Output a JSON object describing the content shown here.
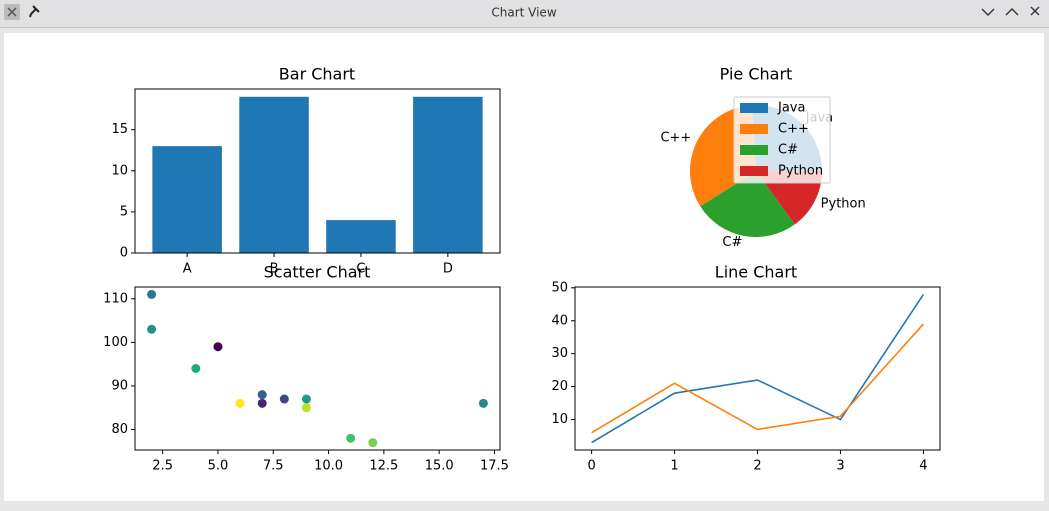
{
  "window": {
    "title": "Chart View"
  },
  "chart_data": [
    {
      "type": "bar",
      "title": "Bar Chart",
      "categories": [
        "A",
        "B",
        "C",
        "D"
      ],
      "values": [
        13,
        19,
        4,
        19
      ],
      "color": "#1f77b4",
      "ylim": [
        0,
        19.95
      ],
      "yticks": [
        0,
        5,
        10,
        15
      ]
    },
    {
      "type": "pie",
      "title": "Pie Chart",
      "categories": [
        "Java",
        "C++",
        "C#",
        "Python"
      ],
      "values": [
        26,
        33,
        26,
        15
      ],
      "colors": [
        "#1f77b4",
        "#ff7f0e",
        "#2ca02c",
        "#d62728"
      ],
      "legend": "upper right"
    },
    {
      "type": "scatter",
      "title": "Scatter Chart",
      "x": [
        5,
        7,
        8,
        7,
        2,
        17,
        2,
        9,
        4,
        11,
        12,
        9,
        6
      ],
      "y": [
        99,
        86,
        87,
        88,
        111,
        86,
        103,
        87,
        94,
        78,
        77,
        85,
        86
      ],
      "colors": [
        "#440154",
        "#482475",
        "#414487",
        "#355f8d",
        "#2a788e",
        "#25858e",
        "#21918c",
        "#1e9b8a",
        "#22a884",
        "#44bf70",
        "#7ad151",
        "#bddf26",
        "#fde725"
      ],
      "xlim": [
        1.25,
        17.75
      ],
      "xticks": [
        2.5,
        {
          "value": 5,
          "label": "5.0"
        },
        7.5,
        {
          "value": 10,
          "label": "10.0"
        },
        12.5,
        {
          "value": 15,
          "label": "15.0"
        },
        17.5
      ],
      "ylim": [
        75.3,
        112.7
      ],
      "yticks": [
        80,
        90,
        100,
        110
      ]
    },
    {
      "type": "line",
      "title": "Line Chart",
      "x": [
        0,
        1,
        2,
        3,
        4
      ],
      "series": [
        {
          "color": "#1f77b4",
          "values": [
            3,
            18,
            22,
            10,
            48
          ]
        },
        {
          "color": "#ff7f0e",
          "values": [
            6,
            21,
            7,
            11,
            39
          ]
        }
      ],
      "xlim": [
        -0.2,
        4.2
      ],
      "xticks": [
        0,
        1,
        2,
        3,
        4
      ],
      "ylim": [
        0.75,
        50.25
      ],
      "yticks": [
        10,
        20,
        30,
        40,
        50
      ]
    }
  ]
}
